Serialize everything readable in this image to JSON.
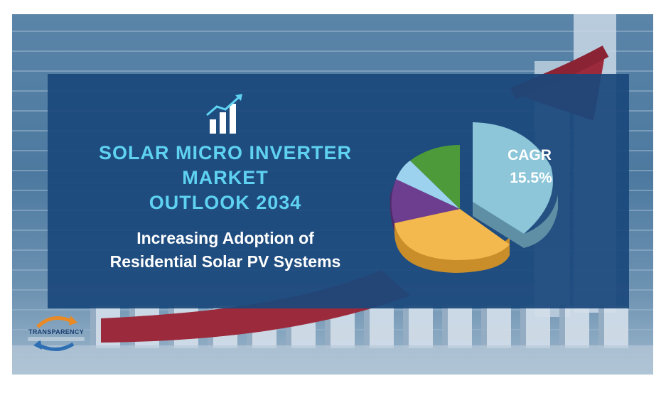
{
  "title": {
    "line1": "SOLAR MICRO INVERTER",
    "line2": "MARKET",
    "line3": "OUTLOOK 2034"
  },
  "subtitle": {
    "line1": "Increasing Adoption of",
    "line2": "Residential Solar PV Systems"
  },
  "cagr": {
    "label": "CAGR",
    "value": "15.5%"
  },
  "logo": {
    "text": "TRANSPARENCY"
  },
  "icons": {
    "header": "bar-chart-growth-icon"
  },
  "colors": {
    "panel": "#1b487c",
    "title": "#5fd2f2",
    "subtitle": "#ffffff",
    "arrow": "#9b2a3c",
    "pie_cagr_slice": "#8cc6d8",
    "pie_yellow": "#f4b94e",
    "pie_purple": "#6d3d8f",
    "pie_lightblue": "#9dd2ef",
    "pie_green": "#4d9a3a"
  }
}
